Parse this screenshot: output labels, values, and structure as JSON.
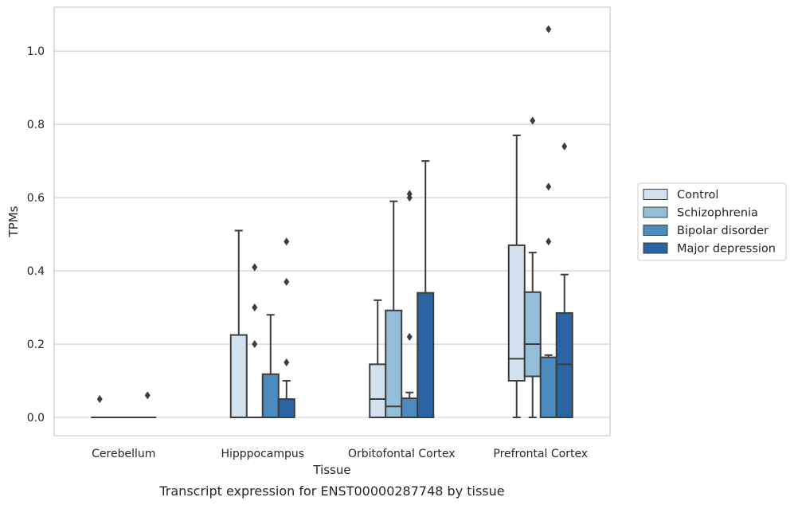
{
  "chart_data": {
    "type": "box",
    "title": "",
    "xlabel": "Tissue",
    "ylabel": "TPMs",
    "caption": "Transcript expression for ENST00000287748 by tissue",
    "ylim": [
      -0.05,
      1.12
    ],
    "yticks": [
      0.0,
      0.2,
      0.4,
      0.6,
      0.8,
      1.0
    ],
    "ytick_labels": [
      "0.0",
      "0.2",
      "0.4",
      "0.6",
      "0.8",
      "1.0"
    ],
    "grid": "horizontal",
    "legend_position": "right",
    "categories": [
      "Cerebellum",
      "Hipppocampus",
      "Orbitofontal Cortex",
      "Prefrontal Cortex"
    ],
    "series": [
      {
        "name": "Control",
        "color": "#d1e1f0",
        "boxes": [
          {
            "q1": 0,
            "median": 0,
            "q3": 0,
            "whisker_low": 0,
            "whisker_high": 0,
            "outliers": [
              0.05
            ]
          },
          {
            "q1": 0,
            "median": 0,
            "q3": 0.225,
            "whisker_low": 0,
            "whisker_high": 0.51,
            "outliers": []
          },
          {
            "q1": 0,
            "median": 0.05,
            "q3": 0.145,
            "whisker_low": 0,
            "whisker_high": 0.32,
            "outliers": []
          },
          {
            "q1": 0.1,
            "median": 0.16,
            "q3": 0.47,
            "whisker_low": 0,
            "whisker_high": 0.77,
            "outliers": []
          }
        ]
      },
      {
        "name": "Schizophrenia",
        "color": "#94bdd8",
        "boxes": [
          {
            "q1": 0,
            "median": 0,
            "q3": 0,
            "whisker_low": 0,
            "whisker_high": 0,
            "outliers": []
          },
          {
            "q1": 0,
            "median": 0,
            "q3": 0,
            "whisker_low": 0,
            "whisker_high": 0,
            "outliers": [
              0.2,
              0.3,
              0.41
            ]
          },
          {
            "q1": 0,
            "median": 0.03,
            "q3": 0.292,
            "whisker_low": 0,
            "whisker_high": 0.59,
            "outliers": []
          },
          {
            "q1": 0.112,
            "median": 0.2,
            "q3": 0.342,
            "whisker_low": 0,
            "whisker_high": 0.45,
            "outliers": [
              0.81
            ]
          }
        ]
      },
      {
        "name": "Bipolar disorder",
        "color": "#4b8bbe",
        "boxes": [
          {
            "q1": 0,
            "median": 0,
            "q3": 0,
            "whisker_low": 0,
            "whisker_high": 0,
            "outliers": []
          },
          {
            "q1": 0,
            "median": 0,
            "q3": 0.118,
            "whisker_low": 0,
            "whisker_high": 0.28,
            "outliers": []
          },
          {
            "q1": 0,
            "median": 0,
            "q3": 0.052,
            "whisker_low": 0,
            "whisker_high": 0.068,
            "outliers": [
              0.22,
              0.6,
              0.61
            ]
          },
          {
            "q1": 0,
            "median": 0,
            "q3": 0.164,
            "whisker_low": 0,
            "whisker_high": 0.17,
            "outliers": [
              0.48,
              0.63,
              1.06
            ]
          }
        ]
      },
      {
        "name": "Major depression",
        "color": "#2a64a3",
        "boxes": [
          {
            "q1": 0,
            "median": 0,
            "q3": 0,
            "whisker_low": 0,
            "whisker_high": 0,
            "outliers": [
              0.06
            ]
          },
          {
            "q1": 0,
            "median": 0,
            "q3": 0.05,
            "whisker_low": 0,
            "whisker_high": 0.1,
            "outliers": [
              0.15,
              0.37,
              0.48
            ]
          },
          {
            "q1": 0,
            "median": 0,
            "q3": 0.34,
            "whisker_low": 0,
            "whisker_high": 0.7,
            "outliers": []
          },
          {
            "q1": 0,
            "median": 0.145,
            "q3": 0.285,
            "whisker_low": 0,
            "whisker_high": 0.39,
            "outliers": [
              0.74
            ]
          }
        ]
      }
    ]
  }
}
